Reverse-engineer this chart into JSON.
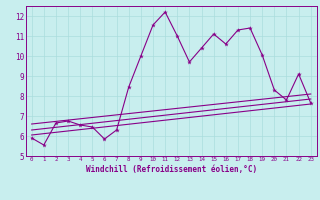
{
  "xlabel": "Windchill (Refroidissement éolien,°C)",
  "xlim": [
    -0.5,
    23.5
  ],
  "ylim": [
    5,
    12.5
  ],
  "xticks": [
    0,
    1,
    2,
    3,
    4,
    5,
    6,
    7,
    8,
    9,
    10,
    11,
    12,
    13,
    14,
    15,
    16,
    17,
    18,
    19,
    20,
    21,
    22,
    23
  ],
  "yticks": [
    5,
    6,
    7,
    8,
    9,
    10,
    11,
    12
  ],
  "bg_color": "#c8eeee",
  "grid_color": "#aadddd",
  "line_color": "#880088",
  "line1_x": [
    0,
    1,
    2,
    3,
    4,
    5,
    6,
    7,
    8,
    9,
    10,
    11,
    12,
    13,
    14,
    15,
    16,
    17,
    18,
    19,
    20,
    21,
    22,
    23
  ],
  "line1_y": [
    5.9,
    5.55,
    6.65,
    6.75,
    6.55,
    6.45,
    5.85,
    6.3,
    8.45,
    10.0,
    11.55,
    12.2,
    11.0,
    9.7,
    10.4,
    11.1,
    10.6,
    11.3,
    11.4,
    10.05,
    8.3,
    7.8,
    9.1,
    7.65
  ],
  "line2_x": [
    0,
    23
  ],
  "line2_y": [
    6.05,
    7.6
  ],
  "line3_x": [
    0,
    23
  ],
  "line3_y": [
    6.3,
    7.85
  ],
  "line4_x": [
    0,
    23
  ],
  "line4_y": [
    6.6,
    8.1
  ]
}
